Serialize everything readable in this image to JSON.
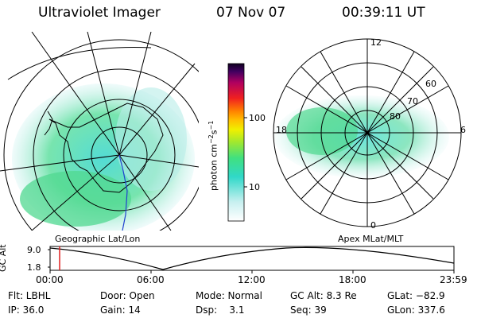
{
  "header": {
    "title": "Ultraviolet Imager",
    "date": "07 Nov 07",
    "time": "00:39:11 UT"
  },
  "colorbar": {
    "unit_label": "photon cm",
    "unit_sup1": "−2",
    "unit_mid": "s",
    "unit_sup2": "−1",
    "ticks": [
      "100",
      "10"
    ]
  },
  "left_panel": {
    "caption": "Geographic Lat/Lon"
  },
  "right_panel": {
    "caption": "Apex  MLat/MLT",
    "mlt_labels": [
      "12",
      "18",
      "6",
      "0"
    ],
    "lat_labels": [
      "60",
      "70",
      "80"
    ]
  },
  "altitude_plot": {
    "ylabel": "GC Alt",
    "yticks": [
      "9.0",
      "1.8"
    ],
    "xticks": [
      "00:00",
      "06:00",
      "12:00",
      "18:00",
      "23:59"
    ],
    "marker_color": "#e02020"
  },
  "footer": {
    "col1": [
      "Flt: LBHL",
      "IP: 36.0"
    ],
    "col2": [
      "Door: Open",
      "Gain: 14"
    ],
    "col3": [
      "Mode: Normal",
      "Dsp:    3.1"
    ],
    "col4": [
      "GC Alt: 8.3 Re",
      "Seq: 39"
    ],
    "col5": [
      "GLat: −82.9",
      "GLon: 337.6"
    ]
  }
}
